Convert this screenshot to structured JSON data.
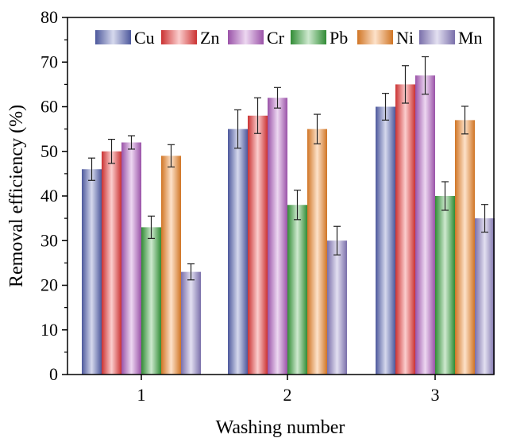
{
  "chart_data": {
    "type": "bar",
    "xlabel": "Washing number",
    "ylabel": "Removal efficiency (%)",
    "ylim": [
      0,
      80
    ],
    "yticks": [
      "0",
      "10",
      "20",
      "30",
      "40",
      "50",
      "60",
      "70",
      "80"
    ],
    "categories": [
      "1",
      "2",
      "3"
    ],
    "legend_position": "top",
    "series": [
      {
        "name": "Cu",
        "values": [
          46,
          55,
          60
        ],
        "errors": [
          2.5,
          4.3,
          3.0
        ],
        "color": "#5b67b8"
      },
      {
        "name": "Zn",
        "values": [
          50,
          58,
          65
        ],
        "errors": [
          2.7,
          4.0,
          4.2
        ],
        "color": "#ef3b3b"
      },
      {
        "name": "Cr",
        "values": [
          52,
          62,
          67
        ],
        "errors": [
          1.5,
          2.3,
          4.2
        ],
        "color": "#b561c6"
      },
      {
        "name": "Pb",
        "values": [
          33,
          38,
          40
        ],
        "errors": [
          2.5,
          3.3,
          3.2
        ],
        "color": "#3aa53e"
      },
      {
        "name": "Ni",
        "values": [
          49,
          55,
          57
        ],
        "errors": [
          2.5,
          3.3,
          3.1
        ],
        "color": "#f58a2b"
      },
      {
        "name": "Mn",
        "values": [
          23,
          30,
          35
        ],
        "errors": [
          1.8,
          3.2,
          3.1
        ],
        "color": "#8f82c8"
      }
    ]
  }
}
